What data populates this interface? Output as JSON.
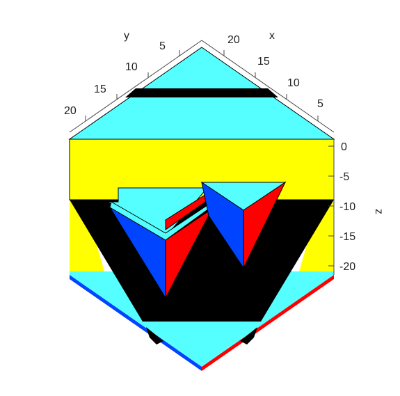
{
  "colors": {
    "cyan": "#55ffff",
    "yellow": "#ffff00",
    "black": "#000000",
    "blue": "#0044ff",
    "red": "#ff0000",
    "axis": "#444444"
  },
  "axes": {
    "x": {
      "label": "x",
      "ticks": [
        "5",
        "10",
        "15",
        "20"
      ]
    },
    "y": {
      "label": "y",
      "ticks": [
        "5",
        "10",
        "15",
        "20"
      ]
    },
    "z": {
      "label": "z",
      "ticks": [
        "0",
        "-5",
        "-10",
        "-15",
        "-20"
      ]
    }
  }
}
